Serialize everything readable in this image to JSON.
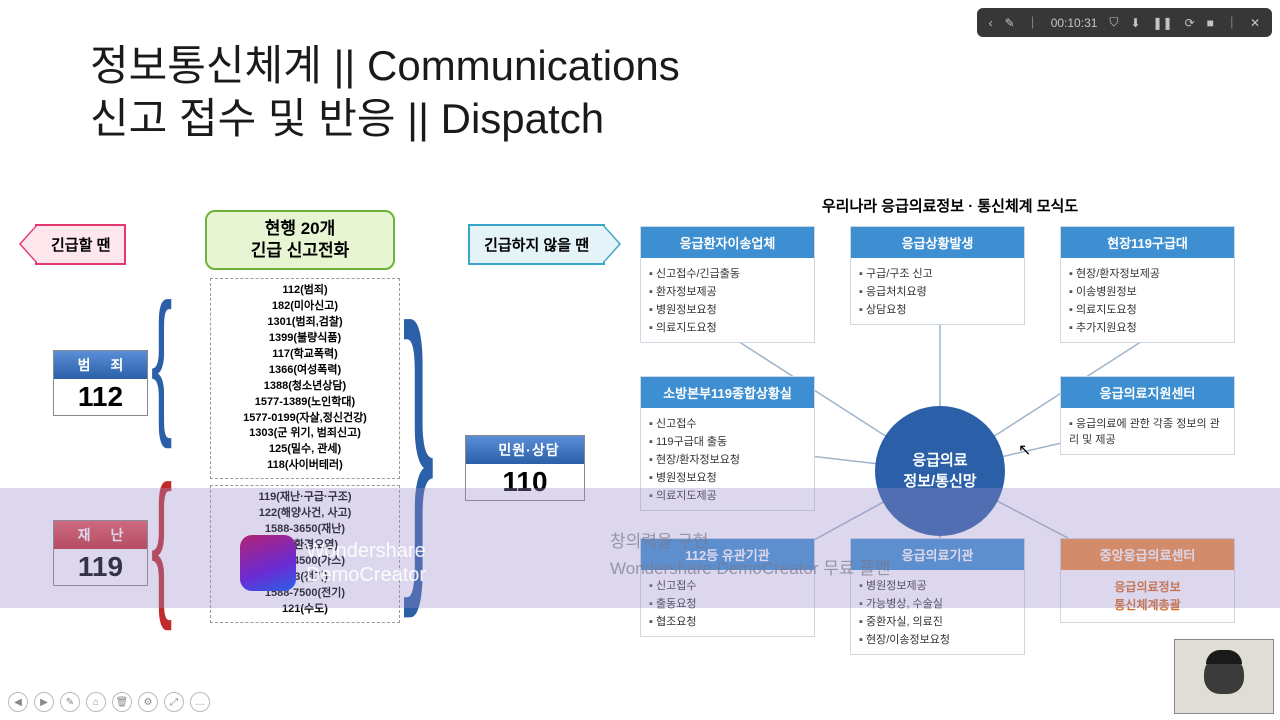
{
  "title_line1": "정보통신체계 || Communications",
  "title_line2": "신고 접수 및 반응 || Dispatch",
  "toolbar": {
    "time": "00:10:31",
    "icons": [
      "‹",
      "✎",
      "｜",
      "⛉",
      "⬇",
      "❚❚",
      "⟳",
      "■",
      "｜",
      "✕"
    ]
  },
  "left": {
    "arrow_left": "긴급할 땐",
    "arrow_right": "긴급하지 않을 땐",
    "header_l1": "현행 20개",
    "header_l2": "긴급 신고전화",
    "box112_label": "범 죄",
    "box112_num": "112",
    "box119_label": "재 난",
    "box119_num": "119",
    "box110_label": "민원·상담",
    "box110_num": "110",
    "list1": [
      "112(범죄)",
      "182(미아신고)",
      "1301(범죄,검찰)",
      "1399(불량식품)",
      "117(학교폭력)",
      "1366(여성폭력)",
      "1388(청소년상담)",
      "1577-1389(노인학대)",
      "1577-0199(자살,정신건강)",
      "1303(군 위기, 범죄신고)",
      "125(밀수, 관세)",
      "118(사이버테러)"
    ],
    "list2": [
      "119(재난·구급·구조)",
      "122(해양사건, 사고)",
      "1588-3650(재난)",
      "128(환경오염)",
      "1544-4500(가스)",
      "123(전기)",
      "1588-7500(전기)",
      "121(수도)"
    ]
  },
  "right": {
    "title": "우리나라 응급의료정보 · 통신체계 모식도",
    "hub_l1": "응급의료",
    "hub_l2": "정보/통신망",
    "cards": {
      "c1": {
        "title": "응급환자이송업체",
        "color": "blue",
        "items": [
          "신고접수/긴급출동",
          "환자정보제공",
          "병원정보요청",
          "의료지도요청"
        ]
      },
      "c2": {
        "title": "응급상황발생",
        "color": "blue",
        "items": [
          "구급/구조 신고",
          "응급처치요령",
          "상담요청"
        ]
      },
      "c3": {
        "title": "현장119구급대",
        "color": "blue",
        "items": [
          "현장/환자정보제공",
          "이송병원정보",
          "의료지도요청",
          "추가지원요청"
        ]
      },
      "c4": {
        "title": "소방본부119종합상황실",
        "color": "blue",
        "items": [
          "신고접수",
          "119구급대 출동",
          "현장/환자정보요청",
          "병원정보요청",
          "의료지도제공"
        ]
      },
      "c5": {
        "title": "응급의료지원센터",
        "color": "blue",
        "items": [
          "응급의료에 관한 각종 정보의 관리 및 제공"
        ]
      },
      "c6": {
        "title": "112등 유관기관",
        "color": "blue",
        "items": [
          "신고접수",
          "출동요청",
          "협조요청"
        ]
      },
      "c7": {
        "title": "응급의료기관",
        "color": "blue",
        "items": [
          "병원정보제공",
          "가능병상, 수술실",
          "중환자실, 의료진",
          "현장/이송정보요청"
        ]
      },
      "c8": {
        "title": "중앙응급의료센터",
        "color": "orange",
        "body": "응급의료정보\n통신체계총괄"
      }
    }
  },
  "watermark": {
    "brand_l1": "Wondershare",
    "brand_l2": "DemoCreator",
    "center_l1": "창의력을 구현",
    "center_l2": "Wondershare DemoCreator 무료 플랜"
  },
  "bottom_controls": [
    "◀",
    "▶",
    "✎",
    "⌂",
    "🗑",
    "⚙",
    "⤢",
    "…"
  ],
  "colors": {
    "blue_hdr": "#3d8fd1",
    "orange_hdr": "#f08c3a",
    "hub": "#2b5fa8",
    "arrow_pink_bg": "#fde7ed",
    "arrow_pink_border": "#e53770",
    "arrow_cyan_bg": "#e3f3f8",
    "arrow_cyan_border": "#3aa5c8",
    "green_bg": "#e8f5d2",
    "green_border": "#6bb33a"
  }
}
